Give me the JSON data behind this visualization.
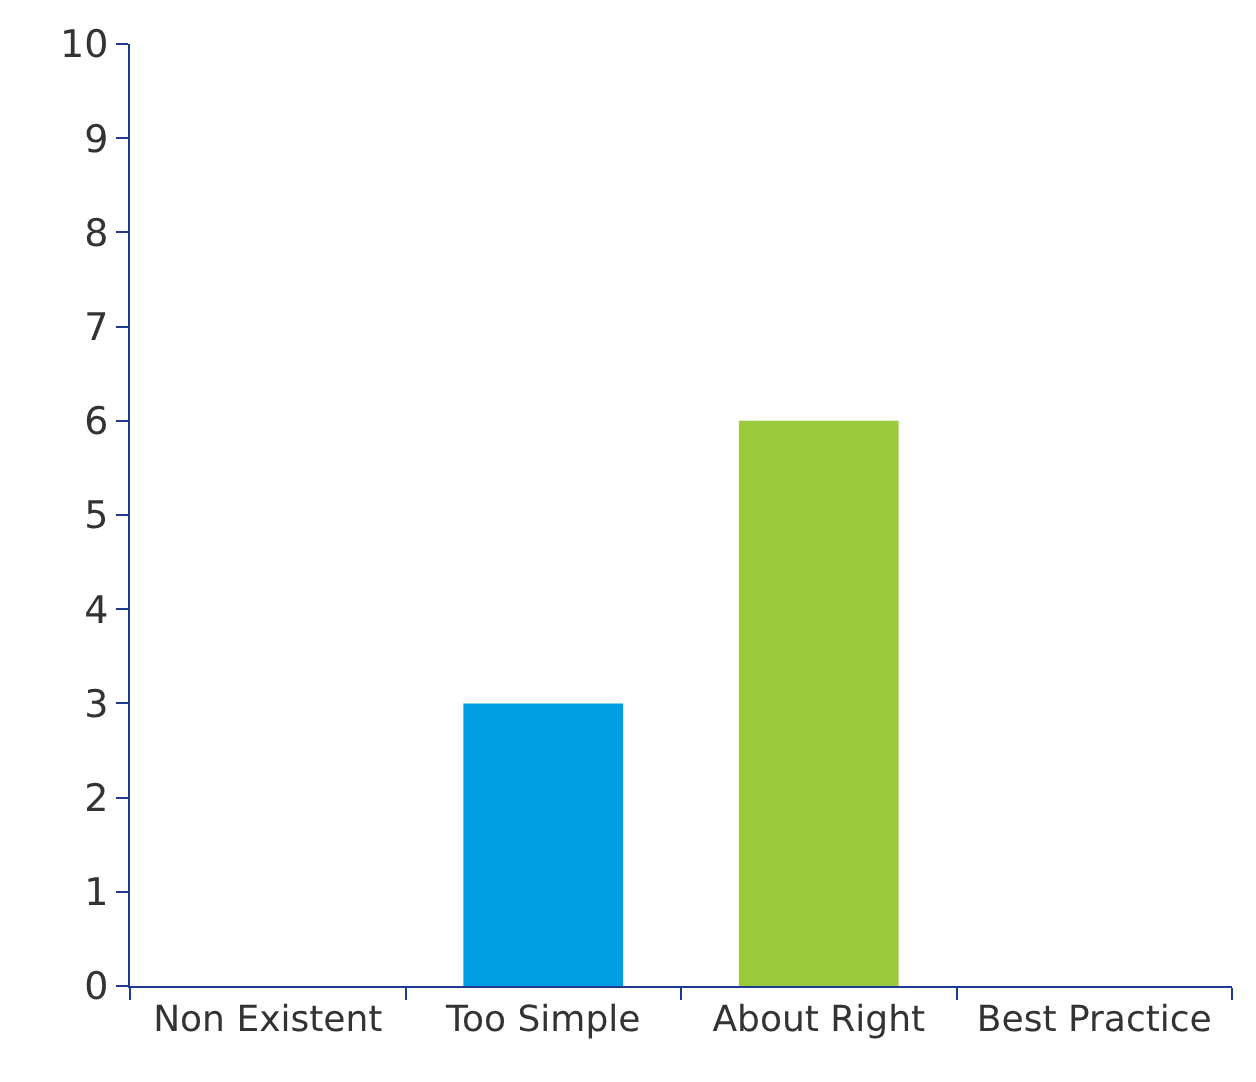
{
  "chart_data": {
    "type": "bar",
    "categories": [
      "Non Existent",
      "Too Simple",
      "About Right",
      "Best Practice"
    ],
    "values": [
      0,
      3,
      6,
      0
    ],
    "colors": [
      null,
      "#009fe3",
      "#9bcb3c",
      null
    ],
    "ylim": [
      0,
      10
    ],
    "yticks": [
      0,
      1,
      2,
      3,
      4,
      5,
      6,
      7,
      8,
      9,
      10
    ]
  }
}
